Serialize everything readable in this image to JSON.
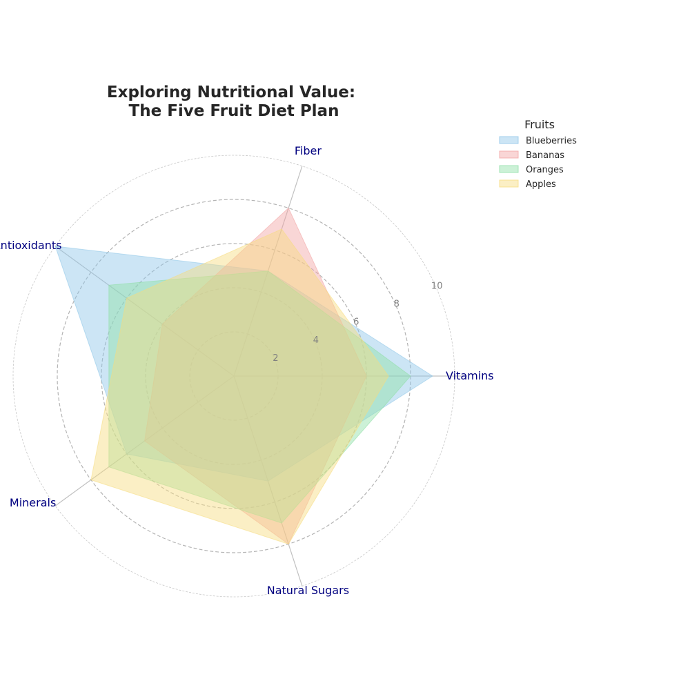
{
  "chart_data": {
    "type": "radar",
    "title_lines": [
      "Exploring Nutritional Value:",
      "The Five Fruit Diet Plan"
    ],
    "axes": [
      "Vitamins",
      "Fiber",
      "Antioxidants",
      "Minerals",
      "Natural Sugars"
    ],
    "r_ticks": [
      "2",
      "4",
      "6",
      "8",
      "10"
    ],
    "r_max": 10,
    "legend_title": "Fruits",
    "legend_placement": "top-right",
    "series": [
      {
        "name": "Blueberries",
        "color": "#8ec6e8",
        "values": [
          9,
          5,
          10,
          6,
          5
        ]
      },
      {
        "name": "Bananas",
        "color": "#f2a4a4",
        "values": [
          6,
          8,
          4,
          5,
          8
        ]
      },
      {
        "name": "Oranges",
        "color": "#8fdfa6",
        "values": [
          8,
          5,
          7,
          7,
          7
        ]
      },
      {
        "name": "Apples",
        "color": "#f6dc7f",
        "values": [
          7,
          7,
          6,
          8,
          8
        ]
      }
    ]
  }
}
